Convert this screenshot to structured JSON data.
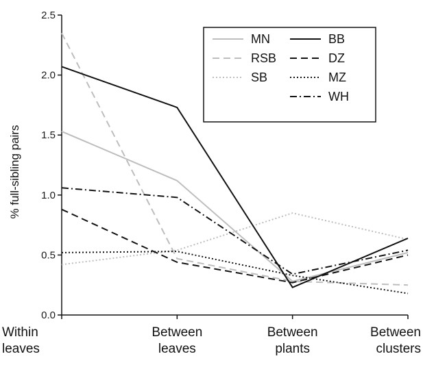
{
  "chart_data": {
    "type": "line",
    "title": "",
    "xlabel": "",
    "ylabel": "% full-sibling pairs",
    "categories": [
      [
        "Within",
        "leaves"
      ],
      [
        "Between",
        "leaves"
      ],
      [
        "Between",
        "plants"
      ],
      [
        "Between",
        "clusters"
      ]
    ],
    "ylim": [
      0.0,
      2.5
    ],
    "yticks": [
      "0.0",
      "0.5",
      "1.0",
      "1.5",
      "2.0",
      "2.5"
    ],
    "legend_position": "top-right",
    "grid": false,
    "series": [
      {
        "name": "MN",
        "values": [
          1.53,
          1.12,
          0.28,
          0.52
        ],
        "color": "#bdbdbd",
        "dash": "solid"
      },
      {
        "name": "RSB",
        "values": [
          2.35,
          0.47,
          0.28,
          0.25
        ],
        "color": "#bdbdbd",
        "dash": "dashed"
      },
      {
        "name": "SB",
        "values": [
          0.42,
          0.54,
          0.85,
          0.63
        ],
        "color": "#bdbdbd",
        "dash": "dotted"
      },
      {
        "name": "BB",
        "values": [
          2.07,
          1.73,
          0.23,
          0.64
        ],
        "color": "#111111",
        "dash": "solid"
      },
      {
        "name": "DZ",
        "values": [
          0.88,
          0.44,
          0.27,
          0.5
        ],
        "color": "#111111",
        "dash": "dashed"
      },
      {
        "name": "MZ",
        "values": [
          0.52,
          0.53,
          0.33,
          0.18
        ],
        "color": "#111111",
        "dash": "dotted"
      },
      {
        "name": "WH",
        "values": [
          1.06,
          0.98,
          0.34,
          0.54
        ],
        "color": "#111111",
        "dash": "dashdot"
      }
    ]
  }
}
